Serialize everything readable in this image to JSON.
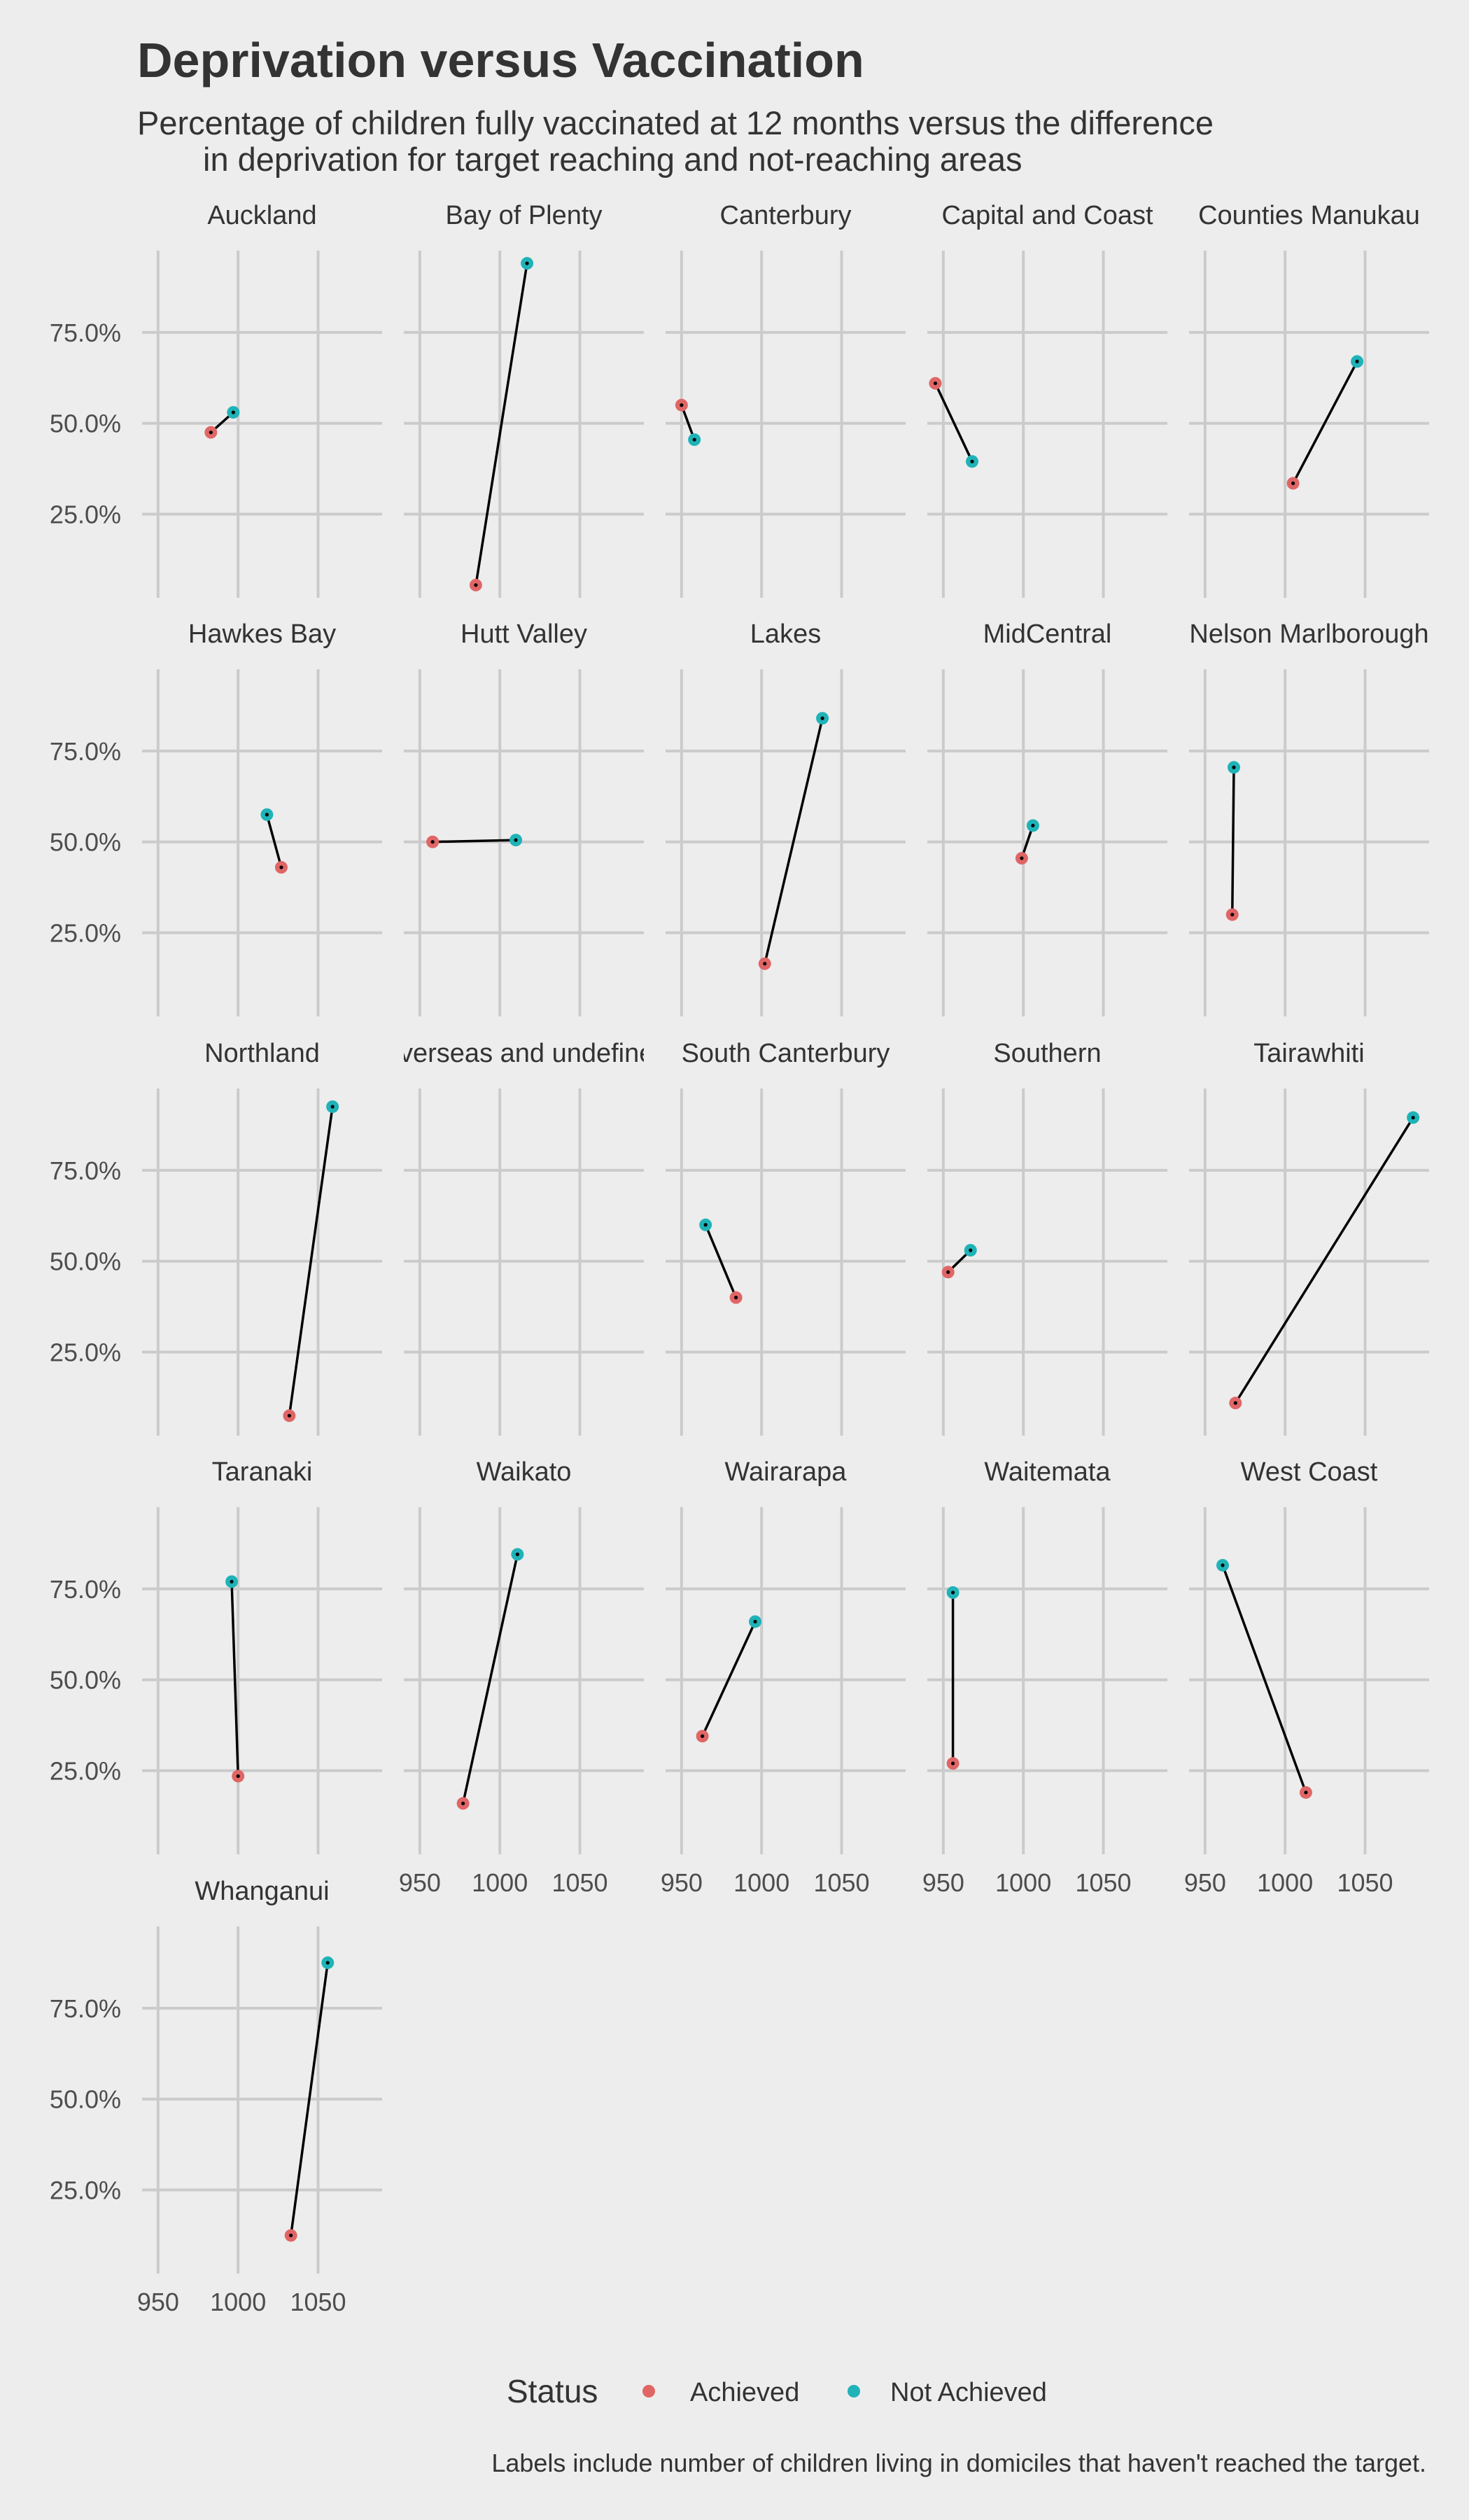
{
  "chart_data": {
    "type": "scatter",
    "title": "Deprivation versus Vaccination",
    "subtitle_lines": [
      "Percentage of children fully vaccinated at 12 months versus the difference",
      "in deprivation for target reaching and not-reaching areas"
    ],
    "caption": "Labels include number of children living in domiciles that haven't reached the target.",
    "xlim": [
      940,
      1090
    ],
    "ylim": [
      0.02,
      0.975
    ],
    "x_ticks": [
      950,
      1000,
      1050
    ],
    "x_tick_labels": [
      "950",
      "1000",
      "1050"
    ],
    "y_ticks": [
      0.25,
      0.5,
      0.75
    ],
    "y_tick_labels": [
      "25.0%",
      "50.0%",
      "75.0%"
    ],
    "grid": true,
    "legend": {
      "title": "Status",
      "position": "bottom",
      "entries": [
        {
          "label": "Achieved",
          "color": "#e06666"
        },
        {
          "label": "Not Achieved",
          "color": "#1fb3b8"
        }
      ]
    },
    "facets": [
      {
        "name": "Auckland",
        "achieved": [
          983,
          0.475
        ],
        "not_achieved": [
          997,
          0.53
        ]
      },
      {
        "name": "Bay of Plenty",
        "achieved": [
          985,
          0.055
        ],
        "not_achieved": [
          1017,
          0.94
        ]
      },
      {
        "name": "Canterbury",
        "achieved": [
          950,
          0.55
        ],
        "not_achieved": [
          958,
          0.455
        ]
      },
      {
        "name": "Capital and Coast",
        "achieved": [
          945,
          0.61
        ],
        "not_achieved": [
          968,
          0.395
        ]
      },
      {
        "name": "Counties Manukau",
        "achieved": [
          1005,
          0.335
        ],
        "not_achieved": [
          1045,
          0.67
        ]
      },
      {
        "name": "Hawkes Bay",
        "achieved": [
          1027,
          0.43
        ],
        "not_achieved": [
          1018,
          0.575
        ]
      },
      {
        "name": "Hutt Valley",
        "achieved": [
          958,
          0.5
        ],
        "not_achieved": [
          1010,
          0.505
        ]
      },
      {
        "name": "Lakes",
        "achieved": [
          1002,
          0.165
        ],
        "not_achieved": [
          1038,
          0.84
        ]
      },
      {
        "name": "MidCentral",
        "achieved": [
          999,
          0.455
        ],
        "not_achieved": [
          1006,
          0.545
        ]
      },
      {
        "name": "Nelson Marlborough",
        "achieved": [
          967,
          0.3
        ],
        "not_achieved": [
          968,
          0.705
        ]
      },
      {
        "name": "Northland",
        "achieved": [
          1032,
          0.075
        ],
        "not_achieved": [
          1059,
          0.925
        ]
      },
      {
        "name": "Overseas and undefined"
      },
      {
        "name": "South Canterbury",
        "achieved": [
          984,
          0.4
        ],
        "not_achieved": [
          965,
          0.6
        ]
      },
      {
        "name": "Southern",
        "achieved": [
          953,
          0.47
        ],
        "not_achieved": [
          967,
          0.53
        ]
      },
      {
        "name": "Tairawhiti",
        "achieved": [
          969,
          0.11
        ],
        "not_achieved": [
          1080,
          0.895
        ]
      },
      {
        "name": "Taranaki",
        "achieved": [
          1000,
          0.235
        ],
        "not_achieved": [
          996,
          0.77
        ]
      },
      {
        "name": "Waikato",
        "achieved": [
          977,
          0.16
        ],
        "not_achieved": [
          1011,
          0.845
        ]
      },
      {
        "name": "Wairarapa",
        "achieved": [
          963,
          0.345
        ],
        "not_achieved": [
          996,
          0.66
        ]
      },
      {
        "name": "Waitemata",
        "achieved": [
          956,
          0.27
        ],
        "not_achieved": [
          956,
          0.74
        ]
      },
      {
        "name": "West Coast",
        "achieved": [
          1013,
          0.19
        ],
        "not_achieved": [
          961,
          0.815
        ]
      },
      {
        "name": "Whanganui",
        "achieved": [
          1033,
          0.125
        ],
        "not_achieved": [
          1056,
          0.875
        ]
      }
    ]
  }
}
